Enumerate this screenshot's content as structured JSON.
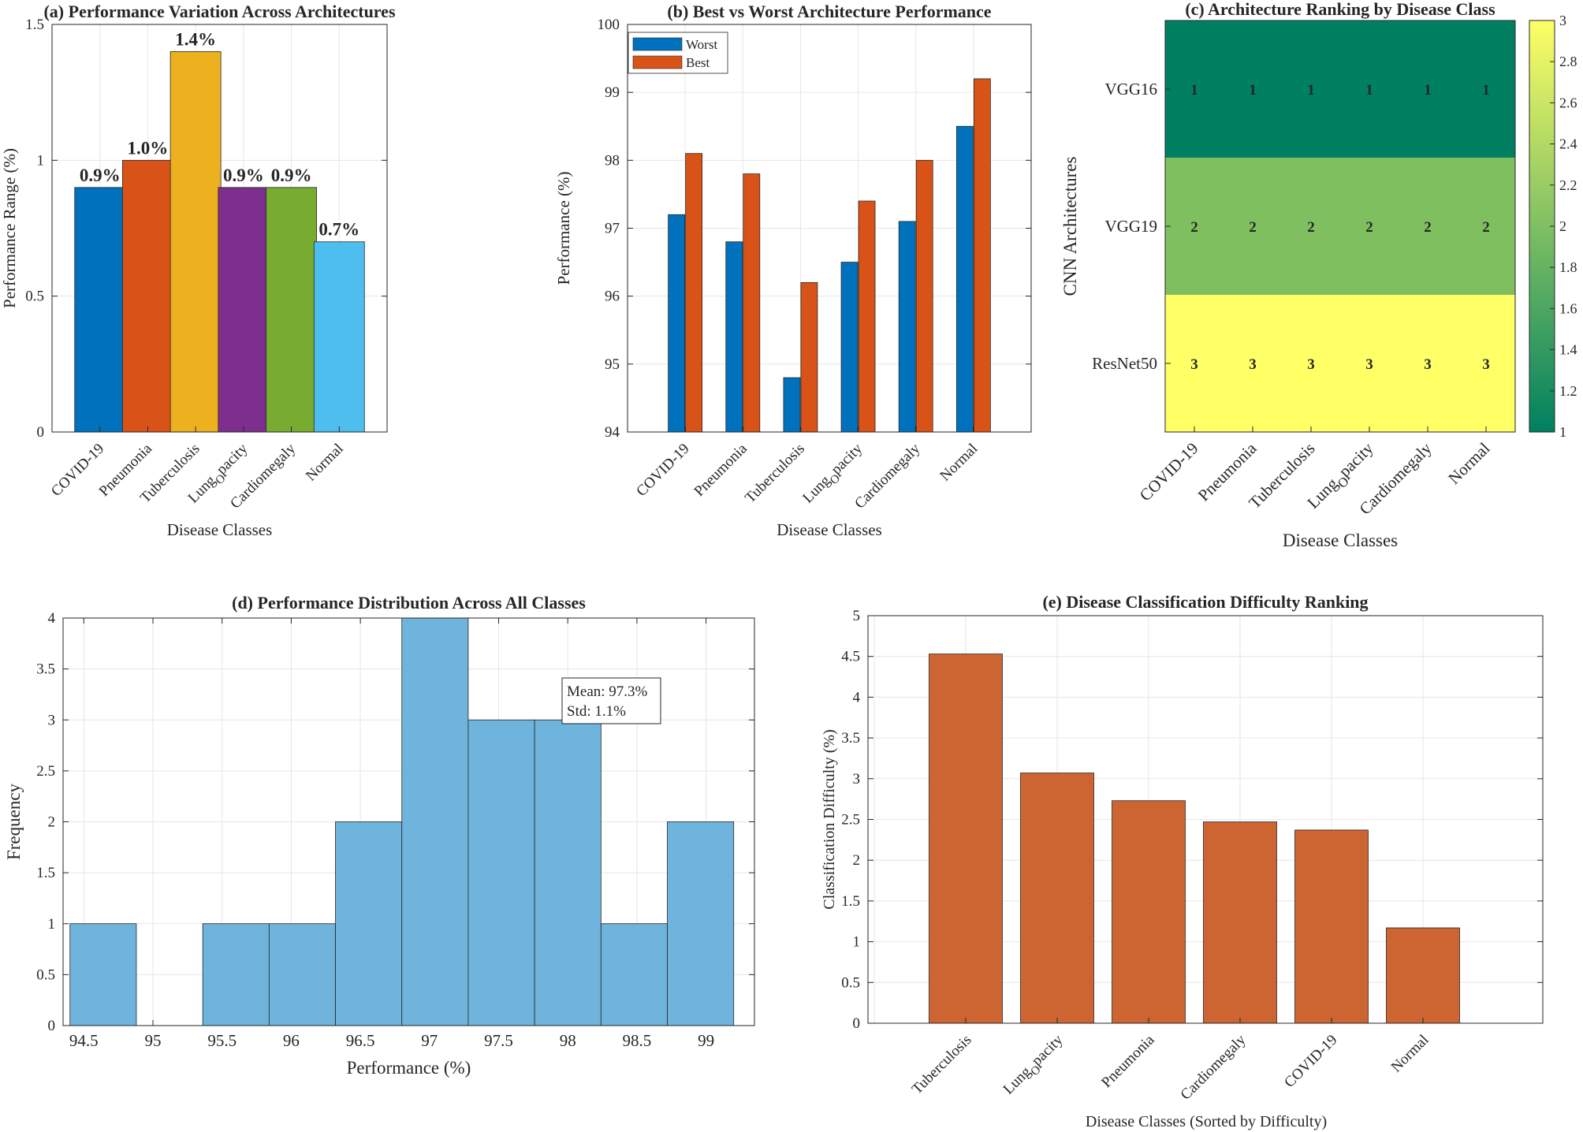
{
  "chart_data": [
    {
      "id": "a",
      "type": "bar",
      "title": "(a) Performance Variation Across Architectures",
      "xlabel": "Disease Classes",
      "ylabel": "Performance Range (%)",
      "categories": [
        "COVID-19",
        "Pneumonia",
        "Tuberculosis",
        "Lung_Opacity",
        "Cardiomegaly",
        "Normal"
      ],
      "values": [
        0.9,
        1.0,
        1.4,
        0.9,
        0.9,
        0.7
      ],
      "data_labels": [
        "0.9%",
        "1.0%",
        "1.4%",
        "0.9%",
        "0.9%",
        "0.7%"
      ],
      "colors": [
        "#0072bd",
        "#d95319",
        "#edb120",
        "#7e2f8e",
        "#77ac30",
        "#4dbeee"
      ],
      "ylim": [
        0,
        1.5
      ],
      "yticks": [
        "0",
        "0.5",
        "1",
        "1.5"
      ],
      "grid": true
    },
    {
      "id": "b",
      "type": "bar",
      "title": "(b) Best vs Worst Architecture Performance",
      "xlabel": "Disease Classes",
      "ylabel": "Performance (%)",
      "categories": [
        "COVID-19",
        "Pneumonia",
        "Tuberculosis",
        "Lung_Opacity",
        "Cardiomegaly",
        "Normal"
      ],
      "series": [
        {
          "name": "Worst",
          "color": "#0072bd",
          "values": [
            97.2,
            96.8,
            94.8,
            96.5,
            97.1,
            98.5
          ]
        },
        {
          "name": "Best",
          "color": "#d95319",
          "values": [
            98.1,
            97.8,
            96.2,
            97.4,
            98.0,
            99.2
          ]
        }
      ],
      "ylim": [
        94,
        100
      ],
      "yticks": [
        "94",
        "95",
        "96",
        "97",
        "98",
        "99",
        "100"
      ],
      "legend": "top-left",
      "grid": true
    },
    {
      "id": "c",
      "type": "heatmap",
      "title": "(c) Architecture Ranking by Disease Class",
      "xlabel": "Disease Classes",
      "ylabel": "CNN Architectures",
      "columns": [
        "COVID-19",
        "Pneumonia",
        "Tuberculosis",
        "Lung_Opacity",
        "Cardiomegaly",
        "Normal"
      ],
      "rows": [
        "VGG16",
        "VGG19",
        "ResNet50"
      ],
      "values": [
        [
          1,
          1,
          1,
          1,
          1,
          1
        ],
        [
          2,
          2,
          2,
          2,
          2,
          2
        ],
        [
          3,
          3,
          3,
          3,
          3,
          3
        ]
      ],
      "cell_labels": [
        [
          "1",
          "1",
          "1",
          "1",
          "1",
          "1"
        ],
        [
          "2",
          "2",
          "2",
          "2",
          "2",
          "2"
        ],
        [
          "3",
          "3",
          "3",
          "3",
          "3",
          "3"
        ]
      ],
      "row_colors": [
        "#008060",
        "#80bf60",
        "#ffff66"
      ],
      "colorbar": {
        "range": [
          1,
          3
        ],
        "ticks": [
          "1",
          "1.2",
          "1.4",
          "1.6",
          "1.8",
          "2",
          "2.2",
          "2.4",
          "2.6",
          "2.8",
          "3"
        ],
        "color_low": "#008060",
        "color_high": "#ffff66"
      }
    },
    {
      "id": "d",
      "type": "histogram",
      "title": "(d) Performance Distribution Across All Classes",
      "xlabel": "Performance (%)",
      "ylabel": "Frequency",
      "bin_start": 94.4,
      "bin_width": 0.48,
      "counts": [
        1,
        0,
        1,
        1,
        2,
        4,
        3,
        3,
        1,
        2
      ],
      "color": "#6eb4dc",
      "xlim": [
        94.35,
        99.35
      ],
      "xtick_values": [
        94.5,
        95,
        95.5,
        96,
        96.5,
        97,
        97.5,
        98,
        98.5,
        99
      ],
      "xticks": [
        "94.5",
        "95",
        "95.5",
        "96",
        "96.5",
        "97",
        "97.5",
        "98",
        "98.5",
        "99"
      ],
      "ylim": [
        0,
        4
      ],
      "yticks": [
        "0",
        "0.5",
        "1",
        "1.5",
        "2",
        "2.5",
        "3",
        "3.5",
        "4"
      ],
      "annotation": [
        "Mean: 97.3%",
        "Std: 1.1%"
      ],
      "grid": true
    },
    {
      "id": "e",
      "type": "bar",
      "title": "(e) Disease Classification Difficulty Ranking",
      "xlabel": "Disease Classes (Sorted by Difficulty)",
      "ylabel": "Classification Difficulty (%)",
      "categories": [
        "Tuberculosis",
        "Lung_Opacity",
        "Pneumonia",
        "Cardiomegaly",
        "COVID-19",
        "Normal"
      ],
      "values": [
        4.53,
        3.07,
        2.73,
        2.47,
        2.37,
        1.17
      ],
      "color": "#cd6533",
      "ylim": [
        0,
        5
      ],
      "yticks": [
        "0",
        "0.5",
        "1",
        "1.5",
        "2",
        "2.5",
        "3",
        "3.5",
        "4",
        "4.5",
        "5"
      ],
      "grid": true
    }
  ]
}
